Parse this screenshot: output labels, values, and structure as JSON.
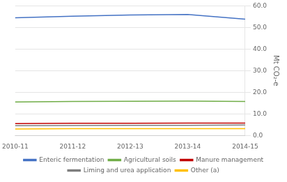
{
  "chart_data": {
    "type": "line",
    "categories": [
      "2010-11",
      "2011-12",
      "2012-13",
      "2013-14",
      "2014-15"
    ],
    "series": [
      {
        "name": "Enteric fermentation",
        "color": "#4472C4",
        "values": [
          54.5,
          55.2,
          55.8,
          56.0,
          53.8
        ]
      },
      {
        "name": "Agricultural soils",
        "color": "#70AD47",
        "values": [
          15.5,
          15.7,
          15.8,
          15.9,
          15.7
        ]
      },
      {
        "name": "Manure management",
        "color": "#C00000",
        "values": [
          5.5,
          5.6,
          5.65,
          5.7,
          5.7
        ]
      },
      {
        "name": "Liming and urea application",
        "color": "#7F7F7F",
        "values": [
          4.5,
          4.6,
          4.65,
          4.7,
          4.8
        ]
      },
      {
        "name": "Other (a)",
        "color": "#FFC000",
        "values": [
          3.0,
          3.1,
          3.1,
          3.1,
          3.1
        ]
      }
    ],
    "ylabel": "Mt CO₂-e",
    "ylim": [
      0,
      60
    ],
    "yticks": [
      {
        "value": 0,
        "label": "0.0"
      },
      {
        "value": 10,
        "label": "10.0"
      },
      {
        "value": 20,
        "label": "20.0"
      },
      {
        "value": 30,
        "label": "30.0"
      },
      {
        "value": 40,
        "label": "40.0"
      },
      {
        "value": 50,
        "label": "50.0"
      },
      {
        "value": 60,
        "label": "60.0"
      }
    ],
    "grid": true,
    "legend": "bottom"
  }
}
